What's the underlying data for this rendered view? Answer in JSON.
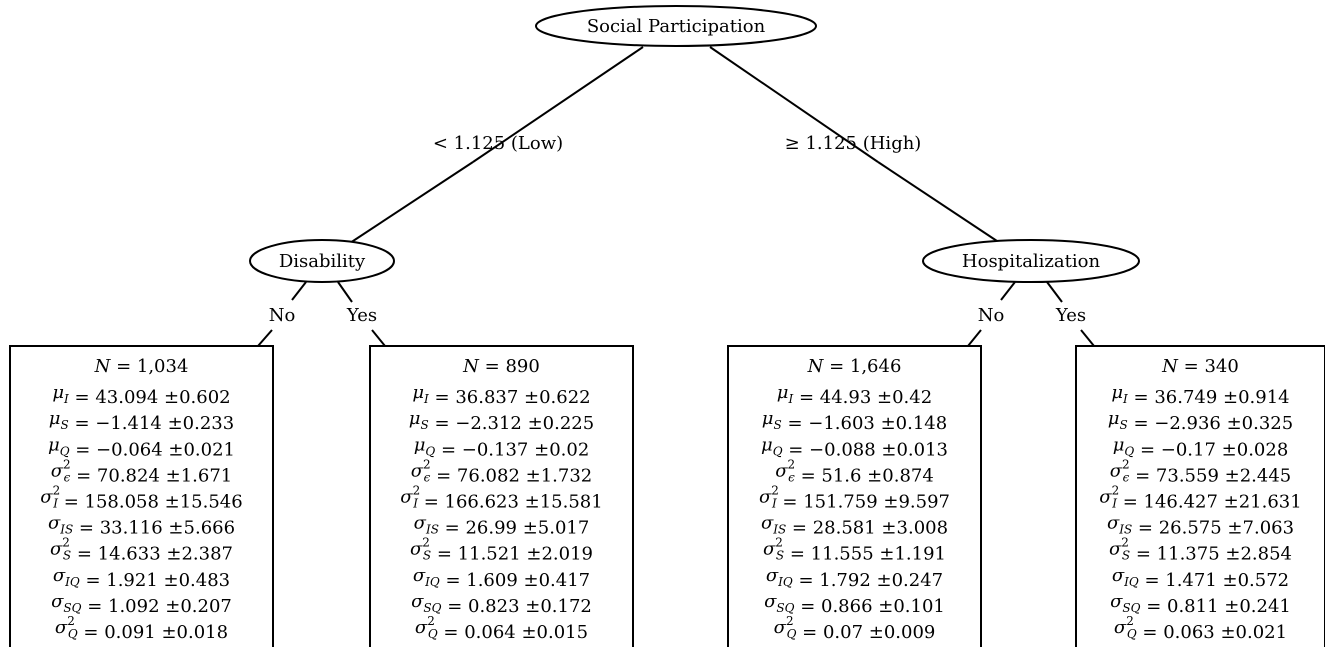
{
  "root": {
    "label": "Social Participation"
  },
  "branches": {
    "left": "< 1.125 (Low)",
    "right": "≥ 1.125 (High)"
  },
  "nodes": {
    "left": {
      "label": "Disability",
      "edges": [
        "No",
        "Yes"
      ]
    },
    "right": {
      "label": "Hospitalization",
      "edges": [
        "No",
        "Yes"
      ]
    }
  },
  "leaves": [
    {
      "N": "1,034",
      "mu_I": "43.094 ±0.602",
      "mu_S": "−1.414 ±0.233",
      "mu_Q": "−0.064 ±0.021",
      "sigma2_eps": "70.824 ±1.671",
      "sigma2_I": "158.058 ±15.546",
      "sigma_IS": "33.116 ±5.666",
      "sigma2_S": "14.633 ±2.387",
      "sigma_IQ": "1.921 ±0.483",
      "sigma_SQ": "1.092 ±0.207",
      "sigma2_Q": "0.091 ±0.018"
    },
    {
      "N": "890",
      "mu_I": "36.837 ±0.622",
      "mu_S": "−2.312 ±0.225",
      "mu_Q": "−0.137 ±0.02",
      "sigma2_eps": "76.082 ±1.732",
      "sigma2_I": "166.623 ±15.581",
      "sigma_IS": "26.99 ±5.017",
      "sigma2_S": "11.521 ±2.019",
      "sigma_IQ": "1.609 ±0.417",
      "sigma_SQ": "0.823 ±0.172",
      "sigma2_Q": "0.064 ±0.015"
    },
    {
      "N": "1,646",
      "mu_I": "44.93 ±0.42",
      "mu_S": "−1.603 ±0.148",
      "mu_Q": "−0.088 ±0.013",
      "sigma2_eps": "51.6 ±0.874",
      "sigma2_I": "151.759 ±9.597",
      "sigma_IS": "28.581 ±3.008",
      "sigma2_S": "11.555 ±1.191",
      "sigma_IQ": "1.792 ±0.247",
      "sigma_SQ": "0.866 ±0.101",
      "sigma2_Q": "0.07 ±0.009"
    },
    {
      "N": "340",
      "mu_I": "36.749 ±0.914",
      "mu_S": "−2.936 ±0.325",
      "mu_Q": "−0.17 ±0.028",
      "sigma2_eps": "73.559 ±2.445",
      "sigma2_I": "146.427 ±21.631",
      "sigma_IS": "26.575 ±7.063",
      "sigma2_S": "11.375 ±2.854",
      "sigma_IQ": "1.471 ±0.572",
      "sigma_SQ": "0.811 ±0.241",
      "sigma2_Q": "0.063 ±0.021"
    }
  ]
}
